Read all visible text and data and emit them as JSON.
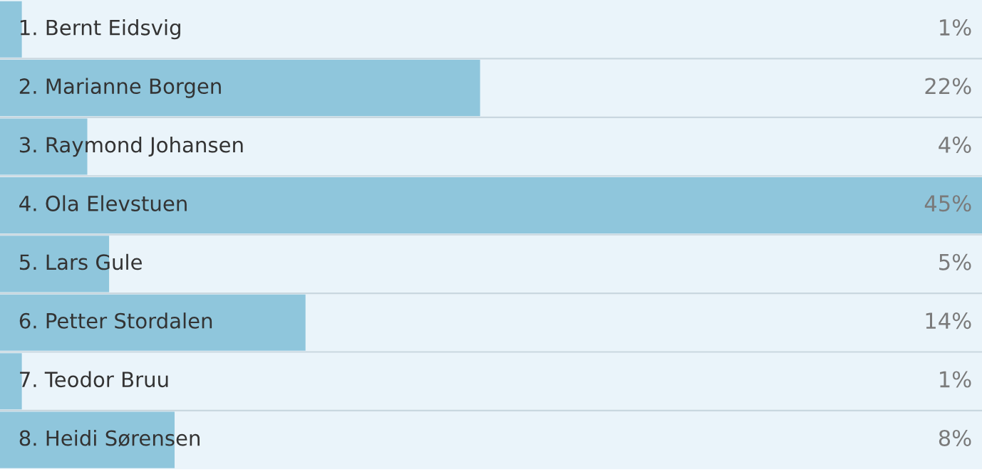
{
  "chart_data": {
    "type": "bar",
    "orientation": "horizontal",
    "categories": [
      "1. Bernt Eidsvig",
      "2. Marianne Borgen",
      "3. Raymond Johansen",
      "4. Ola Elevstuen",
      "5. Lars Gule",
      "6. Petter Stordalen",
      "7. Teodor Bruu",
      "8. Heidi Sørensen"
    ],
    "values": [
      1,
      22,
      4,
      45,
      5,
      14,
      1,
      8
    ],
    "value_labels": [
      "1%",
      "22%",
      "4%",
      "45%",
      "5%",
      "14%",
      "1%",
      "8%"
    ],
    "color": "#8fc6dc"
  }
}
